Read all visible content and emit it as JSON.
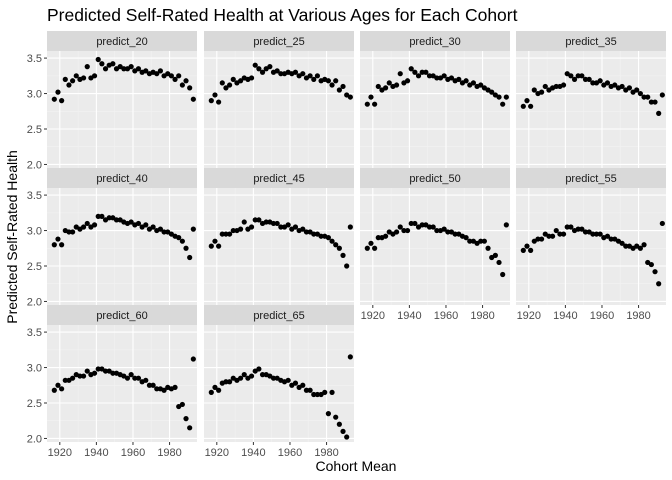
{
  "chart_data": {
    "type": "scatter",
    "title": "Predicted Self-Rated Health at Various Ages for Each Cohort",
    "xlabel": "Cohort Mean",
    "ylabel": "Predicted Self-Rated Health",
    "xlim": [
      1913,
      1995
    ],
    "ylim": [
      1.95,
      3.6
    ],
    "xticks": [
      1920,
      1940,
      1960,
      1980
    ],
    "yticks": [
      2.0,
      2.5,
      3.0,
      3.5
    ],
    "grid": true,
    "legend": "none",
    "point_color": "#000000",
    "panel_background": "#ebebeb",
    "strip_background": "#d9d9d9",
    "x": [
      1917,
      1919,
      1921,
      1923,
      1925,
      1927,
      1929,
      1931,
      1933,
      1935,
      1937,
      1939,
      1941,
      1943,
      1945,
      1947,
      1949,
      1951,
      1953,
      1955,
      1957,
      1959,
      1961,
      1963,
      1965,
      1967,
      1969,
      1971,
      1973,
      1975,
      1977,
      1979,
      1981,
      1983,
      1985,
      1987,
      1989,
      1991,
      1993
    ],
    "panels": [
      {
        "name": "predict_20",
        "y": [
          2.92,
          3.02,
          2.9,
          3.2,
          3.12,
          3.18,
          3.25,
          3.2,
          3.22,
          3.38,
          3.22,
          3.25,
          3.48,
          3.42,
          3.35,
          3.4,
          3.42,
          3.35,
          3.38,
          3.35,
          3.35,
          3.38,
          3.32,
          3.35,
          3.3,
          3.32,
          3.28,
          3.3,
          3.28,
          3.32,
          3.25,
          3.28,
          3.25,
          3.2,
          3.25,
          3.12,
          3.18,
          3.08,
          2.92
        ]
      },
      {
        "name": "predict_25",
        "y": [
          2.9,
          2.98,
          2.88,
          3.15,
          3.08,
          3.12,
          3.2,
          3.15,
          3.18,
          3.22,
          3.2,
          3.22,
          3.4,
          3.35,
          3.3,
          3.35,
          3.38,
          3.3,
          3.32,
          3.28,
          3.28,
          3.3,
          3.28,
          3.3,
          3.25,
          3.28,
          3.22,
          3.25,
          3.2,
          3.25,
          3.18,
          3.2,
          3.18,
          3.12,
          3.18,
          3.05,
          3.1,
          2.98,
          2.95
        ]
      },
      {
        "name": "predict_30",
        "y": [
          2.85,
          2.95,
          2.85,
          3.1,
          3.05,
          3.08,
          3.15,
          3.1,
          3.12,
          3.28,
          3.15,
          3.18,
          3.35,
          3.3,
          3.25,
          3.3,
          3.3,
          3.25,
          3.25,
          3.22,
          3.22,
          3.25,
          3.2,
          3.22,
          3.18,
          3.2,
          3.15,
          3.18,
          3.12,
          3.15,
          3.1,
          3.12,
          3.08,
          3.05,
          3.02,
          2.98,
          2.95,
          2.85,
          2.95
        ]
      },
      {
        "name": "predict_35",
        "y": [
          2.82,
          2.9,
          2.82,
          3.05,
          3.0,
          3.02,
          3.1,
          3.05,
          3.08,
          3.1,
          3.1,
          3.12,
          3.28,
          3.25,
          3.2,
          3.25,
          3.25,
          3.2,
          3.2,
          3.15,
          3.15,
          3.18,
          3.12,
          3.15,
          3.1,
          3.12,
          3.08,
          3.1,
          3.05,
          3.08,
          3.02,
          3.05,
          3.0,
          2.95,
          2.95,
          2.88,
          2.88,
          2.72,
          2.98
        ]
      },
      {
        "name": "predict_40",
        "y": [
          2.8,
          2.88,
          2.8,
          3.0,
          2.98,
          2.98,
          3.05,
          3.02,
          3.05,
          3.1,
          3.05,
          3.08,
          3.2,
          3.2,
          3.15,
          3.18,
          3.18,
          3.15,
          3.15,
          3.12,
          3.1,
          3.12,
          3.08,
          3.1,
          3.05,
          3.08,
          3.02,
          3.05,
          3.0,
          3.02,
          2.98,
          2.98,
          2.95,
          2.92,
          2.9,
          2.85,
          2.75,
          2.62,
          3.02
        ]
      },
      {
        "name": "predict_45",
        "y": [
          2.78,
          2.85,
          2.78,
          2.95,
          2.95,
          2.95,
          3.0,
          3.0,
          3.02,
          3.12,
          3.02,
          3.05,
          3.15,
          3.15,
          3.1,
          3.12,
          3.12,
          3.1,
          3.1,
          3.05,
          3.05,
          3.08,
          3.02,
          3.05,
          3.0,
          3.02,
          2.98,
          2.98,
          2.95,
          2.95,
          2.92,
          2.92,
          2.9,
          2.85,
          2.8,
          2.75,
          2.65,
          2.5,
          3.05
        ]
      },
      {
        "name": "predict_50",
        "y": [
          2.75,
          2.82,
          2.75,
          2.9,
          2.9,
          2.92,
          2.98,
          2.95,
          2.98,
          3.05,
          3.0,
          3.0,
          3.1,
          3.1,
          3.05,
          3.08,
          3.08,
          3.05,
          3.05,
          3.0,
          3.0,
          3.02,
          2.98,
          2.98,
          2.95,
          2.95,
          2.92,
          2.9,
          2.85,
          2.85,
          2.82,
          2.85,
          2.85,
          2.75,
          2.62,
          2.65,
          2.55,
          2.38,
          3.08
        ]
      },
      {
        "name": "predict_55",
        "y": [
          2.72,
          2.78,
          2.72,
          2.85,
          2.88,
          2.88,
          2.95,
          2.92,
          2.92,
          3.0,
          2.95,
          2.95,
          3.05,
          3.05,
          3.0,
          3.02,
          3.02,
          2.98,
          2.98,
          2.95,
          2.95,
          2.95,
          2.9,
          2.92,
          2.88,
          2.88,
          2.85,
          2.82,
          2.78,
          2.78,
          2.75,
          2.78,
          2.75,
          2.8,
          2.55,
          2.52,
          2.42,
          2.25,
          3.1
        ]
      },
      {
        "name": "predict_60",
        "y": [
          2.68,
          2.75,
          2.7,
          2.82,
          2.82,
          2.85,
          2.9,
          2.88,
          2.88,
          2.95,
          2.9,
          2.92,
          2.98,
          2.98,
          2.95,
          2.95,
          2.92,
          2.92,
          2.9,
          2.88,
          2.85,
          2.9,
          2.85,
          2.85,
          2.8,
          2.82,
          2.75,
          2.75,
          2.7,
          2.7,
          2.68,
          2.72,
          2.7,
          2.72,
          2.45,
          2.48,
          2.28,
          2.15,
          3.12
        ]
      },
      {
        "name": "predict_65",
        "y": [
          2.65,
          2.72,
          2.68,
          2.78,
          2.8,
          2.8,
          2.85,
          2.82,
          2.85,
          2.9,
          2.85,
          2.88,
          2.95,
          2.98,
          2.9,
          2.9,
          2.88,
          2.85,
          2.85,
          2.82,
          2.8,
          2.82,
          2.75,
          2.78,
          2.72,
          2.75,
          2.68,
          2.68,
          2.62,
          2.62,
          2.62,
          2.65,
          2.35,
          2.65,
          2.3,
          2.2,
          2.1,
          2.02,
          3.15
        ]
      }
    ]
  }
}
